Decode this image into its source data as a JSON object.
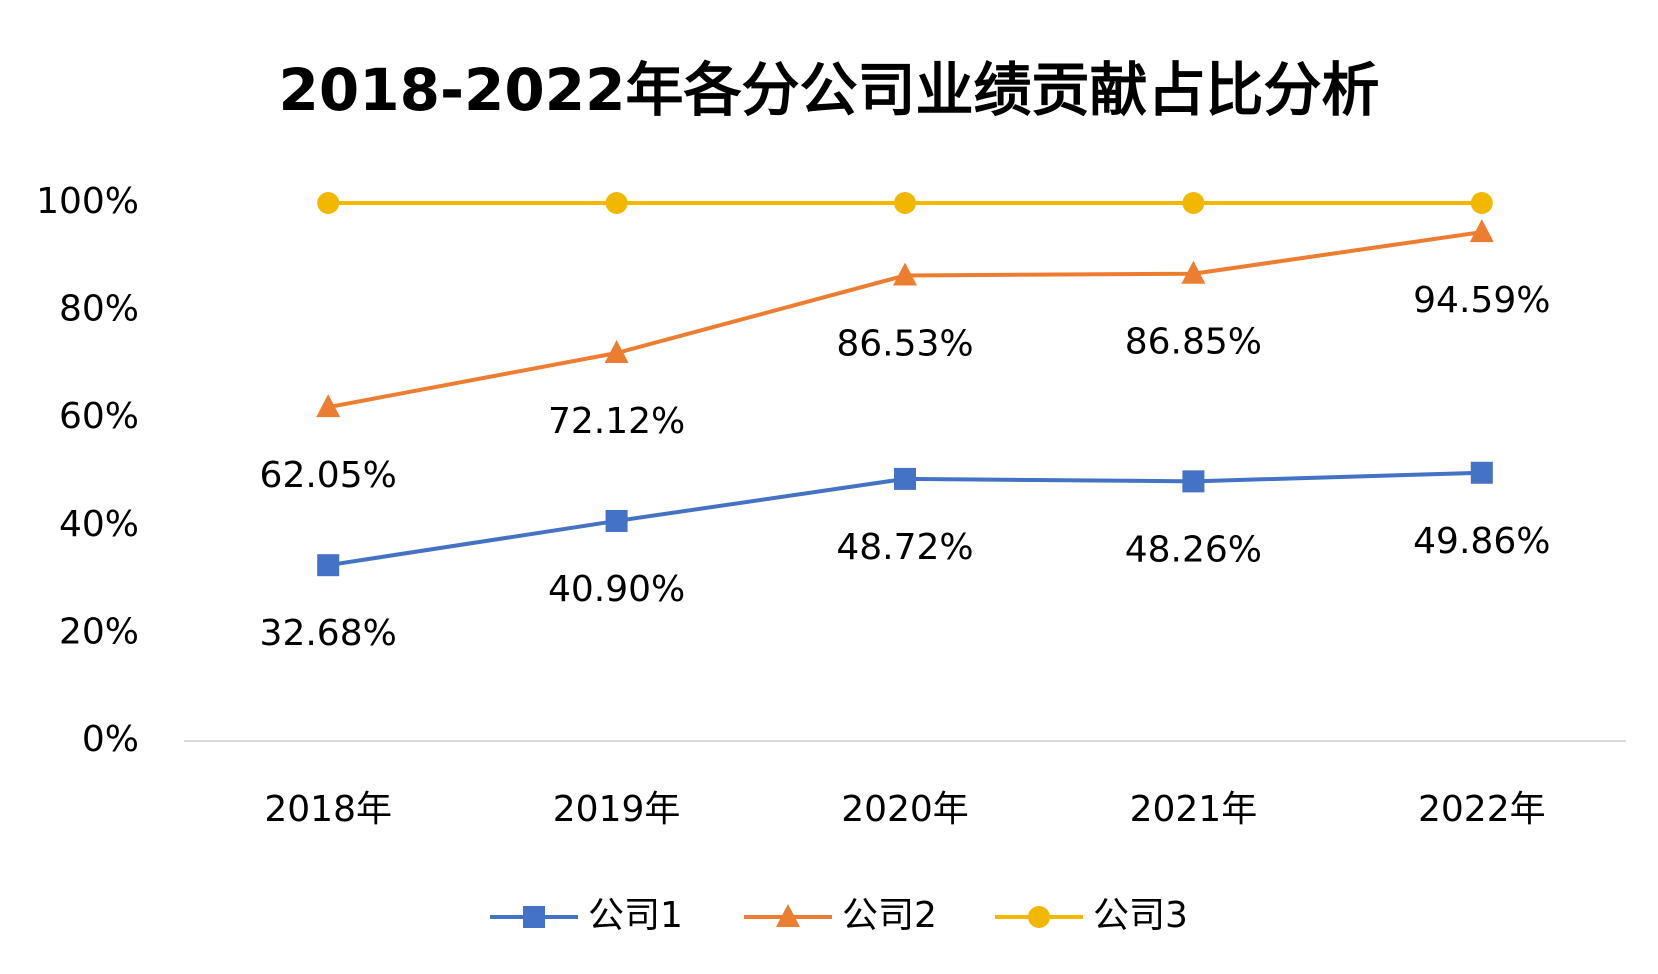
{
  "chart_data": {
    "type": "line",
    "title": "2018-2022年各分公司业绩贡献占比分析",
    "categories": [
      "2018年",
      "2019年",
      "2020年",
      "2021年",
      "2022年"
    ],
    "series": [
      {
        "name": "公司1",
        "color": "#4472c4",
        "marker": "square",
        "values": [
          32.68,
          40.9,
          48.72,
          48.26,
          49.86
        ],
        "value_labels": [
          "32.68%",
          "40.90%",
          "48.72%",
          "48.26%",
          "49.86%"
        ]
      },
      {
        "name": "公司2",
        "color": "#ed7d31",
        "marker": "triangle",
        "values": [
          62.05,
          72.12,
          86.53,
          86.85,
          94.59
        ],
        "value_labels": [
          "62.05%",
          "72.12%",
          "86.53%",
          "86.85%",
          "94.59%"
        ]
      },
      {
        "name": "公司3",
        "color": "#f2b800",
        "marker": "circle",
        "values": [
          100,
          100,
          100,
          100,
          100
        ]
      }
    ],
    "ylim": [
      0,
      100
    ],
    "yticks": [
      {
        "value": 0,
        "label": "0%"
      },
      {
        "value": 20,
        "label": "20%"
      },
      {
        "value": 40,
        "label": "40%"
      },
      {
        "value": 60,
        "label": "60%"
      },
      {
        "value": 80,
        "label": "80%"
      },
      {
        "value": 100,
        "label": "100%"
      }
    ],
    "grid": false,
    "legend": "bottom"
  }
}
